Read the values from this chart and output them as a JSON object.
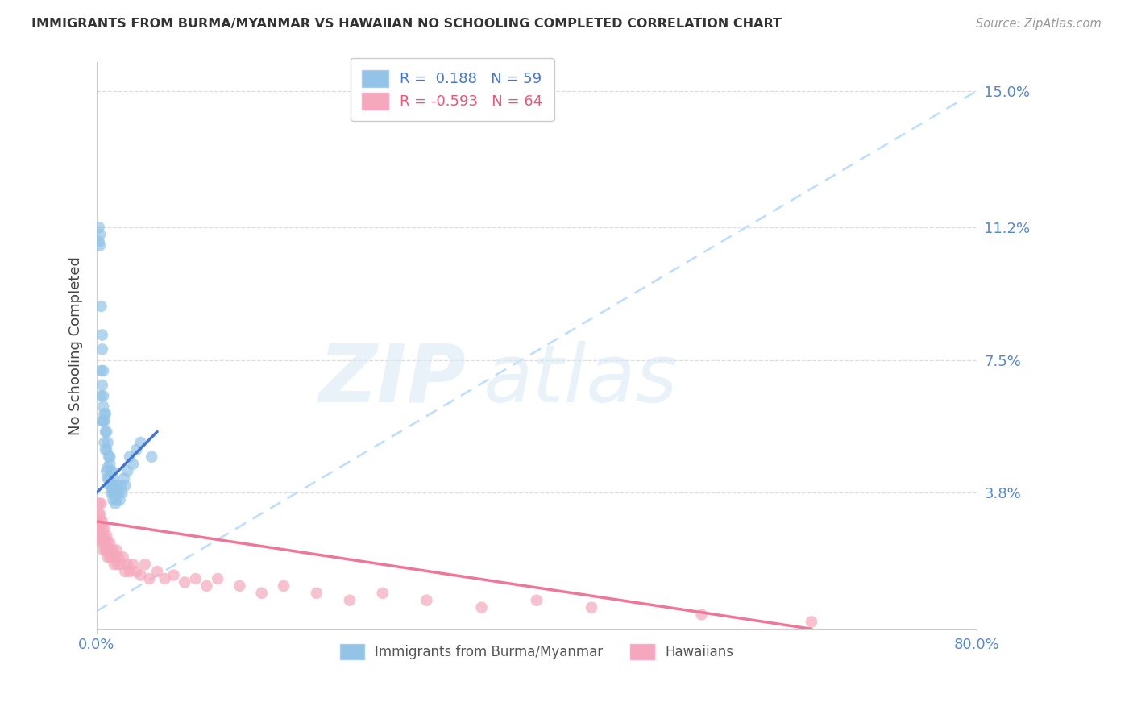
{
  "title": "IMMIGRANTS FROM BURMA/MYANMAR VS HAWAIIAN NO SCHOOLING COMPLETED CORRELATION CHART",
  "source": "Source: ZipAtlas.com",
  "ylabel": "No Schooling Completed",
  "yticks": [
    0.0,
    0.038,
    0.075,
    0.112,
    0.15
  ],
  "ytick_labels": [
    "",
    "3.8%",
    "7.5%",
    "11.2%",
    "15.0%"
  ],
  "xticks": [
    0.0,
    0.8
  ],
  "xtick_labels": [
    "0.0%",
    "80.0%"
  ],
  "xlim": [
    0.0,
    0.8
  ],
  "ylim": [
    0.0,
    0.158
  ],
  "blue_R": 0.188,
  "blue_N": 59,
  "pink_R": -0.593,
  "pink_N": 64,
  "blue_color": "#93C4E8",
  "pink_color": "#F5A8BC",
  "blue_line_color": "#4477CC",
  "pink_line_color": "#EE7799",
  "dashed_line_color": "#BBDDFF",
  "watermark_zip": "ZIP",
  "watermark_atlas": "atlas",
  "legend_label_blue": "Immigrants from Burma/Myanmar",
  "legend_label_pink": "Hawaiians",
  "blue_scatter_x": [
    0.002,
    0.002,
    0.003,
    0.003,
    0.004,
    0.004,
    0.004,
    0.005,
    0.005,
    0.005,
    0.005,
    0.006,
    0.006,
    0.006,
    0.006,
    0.007,
    0.007,
    0.007,
    0.008,
    0.008,
    0.008,
    0.009,
    0.009,
    0.009,
    0.01,
    0.01,
    0.01,
    0.011,
    0.011,
    0.012,
    0.012,
    0.012,
    0.013,
    0.013,
    0.013,
    0.014,
    0.014,
    0.015,
    0.015,
    0.015,
    0.016,
    0.016,
    0.017,
    0.017,
    0.018,
    0.018,
    0.019,
    0.02,
    0.021,
    0.022,
    0.023,
    0.025,
    0.026,
    0.028,
    0.03,
    0.033,
    0.036,
    0.04,
    0.05
  ],
  "blue_scatter_y": [
    0.108,
    0.112,
    0.107,
    0.11,
    0.09,
    0.065,
    0.072,
    0.078,
    0.082,
    0.058,
    0.068,
    0.065,
    0.072,
    0.058,
    0.062,
    0.06,
    0.058,
    0.052,
    0.055,
    0.05,
    0.06,
    0.055,
    0.05,
    0.044,
    0.052,
    0.045,
    0.042,
    0.048,
    0.042,
    0.046,
    0.048,
    0.04,
    0.044,
    0.04,
    0.038,
    0.044,
    0.04,
    0.042,
    0.038,
    0.036,
    0.04,
    0.038,
    0.038,
    0.035,
    0.038,
    0.036,
    0.04,
    0.038,
    0.036,
    0.04,
    0.038,
    0.042,
    0.04,
    0.044,
    0.048,
    0.046,
    0.05,
    0.052,
    0.048
  ],
  "pink_scatter_x": [
    0.001,
    0.001,
    0.002,
    0.002,
    0.002,
    0.003,
    0.003,
    0.003,
    0.004,
    0.004,
    0.004,
    0.005,
    0.005,
    0.005,
    0.006,
    0.006,
    0.007,
    0.007,
    0.008,
    0.008,
    0.009,
    0.009,
    0.01,
    0.01,
    0.011,
    0.012,
    0.012,
    0.013,
    0.014,
    0.015,
    0.016,
    0.017,
    0.018,
    0.019,
    0.02,
    0.022,
    0.024,
    0.026,
    0.028,
    0.03,
    0.033,
    0.036,
    0.04,
    0.044,
    0.048,
    0.055,
    0.062,
    0.07,
    0.08,
    0.09,
    0.1,
    0.11,
    0.13,
    0.15,
    0.17,
    0.2,
    0.23,
    0.26,
    0.3,
    0.35,
    0.4,
    0.45,
    0.55,
    0.65
  ],
  "pink_scatter_y": [
    0.03,
    0.028,
    0.035,
    0.032,
    0.026,
    0.032,
    0.028,
    0.025,
    0.035,
    0.03,
    0.026,
    0.03,
    0.028,
    0.024,
    0.026,
    0.022,
    0.028,
    0.024,
    0.025,
    0.022,
    0.026,
    0.022,
    0.024,
    0.02,
    0.022,
    0.024,
    0.02,
    0.022,
    0.02,
    0.022,
    0.018,
    0.02,
    0.022,
    0.018,
    0.02,
    0.018,
    0.02,
    0.016,
    0.018,
    0.016,
    0.018,
    0.016,
    0.015,
    0.018,
    0.014,
    0.016,
    0.014,
    0.015,
    0.013,
    0.014,
    0.012,
    0.014,
    0.012,
    0.01,
    0.012,
    0.01,
    0.008,
    0.01,
    0.008,
    0.006,
    0.008,
    0.006,
    0.004,
    0.002
  ],
  "blue_line_x": [
    0.0,
    0.055
  ],
  "blue_line_y": [
    0.038,
    0.055
  ],
  "pink_line_x": [
    0.0,
    0.65
  ],
  "pink_line_y": [
    0.03,
    0.0
  ],
  "diag_line_x": [
    0.0,
    0.8
  ],
  "diag_line_y": [
    0.005,
    0.15
  ]
}
